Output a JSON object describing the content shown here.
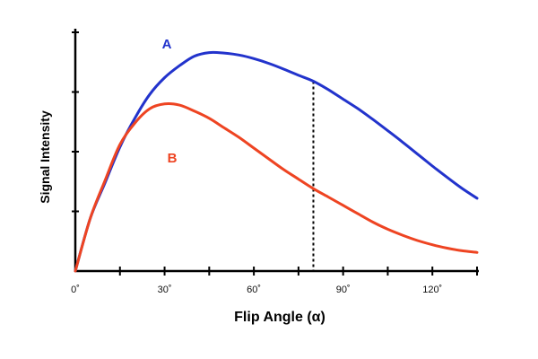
{
  "chart_data": {
    "type": "line",
    "title": "",
    "xlabel": "Flip Angle (α)",
    "ylabel": "Signal Intensity",
    "xlim": [
      0,
      135
    ],
    "ylim": [
      0,
      100
    ],
    "grid": false,
    "x_tick_labels": [
      {
        "value": 0,
        "label": "0˚"
      },
      {
        "value": 30,
        "label": "30˚"
      },
      {
        "value": 60,
        "label": "60˚"
      },
      {
        "value": 90,
        "label": "90˚"
      },
      {
        "value": 120,
        "label": "120˚"
      }
    ],
    "x_minor_ticks": [
      15,
      45,
      75,
      105,
      135
    ],
    "y_ticks": [
      0,
      25,
      50,
      75,
      100
    ],
    "series": [
      {
        "name": "A",
        "color": "#2233cc",
        "x": [
          0,
          5,
          10,
          15,
          20,
          25,
          30,
          35,
          40,
          45,
          50,
          55,
          60,
          65,
          70,
          75,
          80,
          85,
          90,
          95,
          100,
          105,
          110,
          115,
          120,
          125,
          130,
          135
        ],
        "y": [
          0,
          22,
          37,
          52,
          64,
          74,
          81,
          86,
          90,
          91.5,
          91.3,
          90.5,
          89,
          87,
          84.6,
          82,
          79.5,
          76,
          72,
          68,
          63.5,
          58.8,
          54,
          49,
          44,
          39.2,
          34.6,
          30.5
        ]
      },
      {
        "name": "B",
        "color": "#ee4422",
        "x": [
          0,
          5,
          10,
          15,
          20,
          25,
          30,
          35,
          40,
          45,
          50,
          55,
          60,
          65,
          70,
          75,
          80,
          85,
          90,
          95,
          100,
          105,
          110,
          115,
          120,
          125,
          130,
          135
        ],
        "y": [
          0,
          22,
          38,
          53,
          62,
          68,
          70,
          69.5,
          67,
          64,
          60,
          56,
          51.5,
          47,
          42.5,
          38.5,
          34.5,
          31,
          27.5,
          24,
          20.5,
          17.5,
          15,
          12.8,
          11,
          9.6,
          8.5,
          7.8
        ]
      }
    ],
    "annotations": [
      {
        "type": "vertical-dashed-line",
        "x": 80
      }
    ]
  }
}
